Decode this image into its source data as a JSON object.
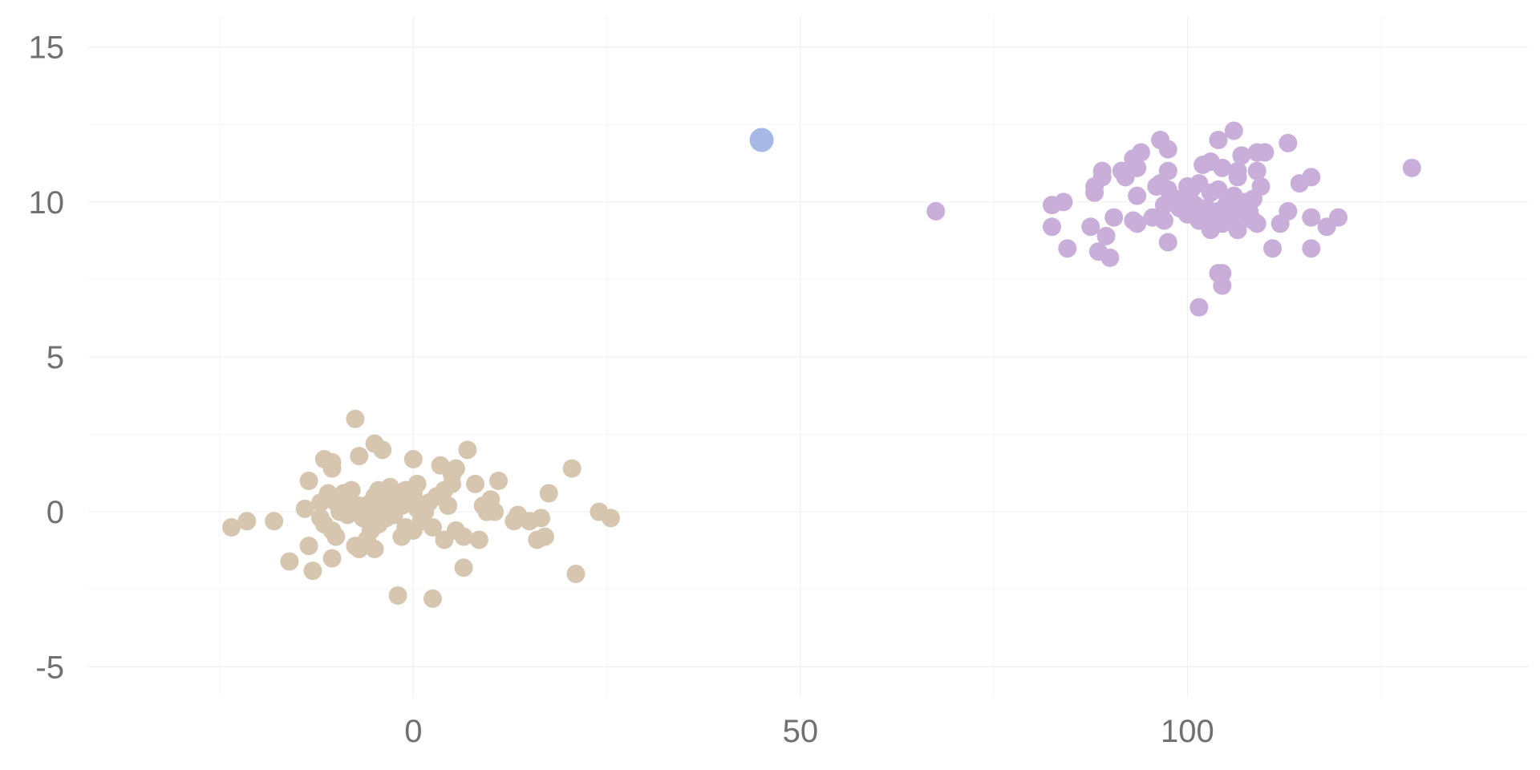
{
  "chart_data": {
    "type": "scatter",
    "title": "",
    "xlabel": "",
    "ylabel": "",
    "xlim": [
      -42,
      144
    ],
    "ylim": [
      -6,
      16
    ],
    "x_ticks": [
      0,
      50,
      100
    ],
    "x_tick_labels": [
      "0",
      "50",
      "100"
    ],
    "y_ticks": [
      -5,
      0,
      5,
      10,
      15
    ],
    "y_tick_labels": [
      "-5",
      "0",
      "5",
      "10",
      "15"
    ],
    "grid": true,
    "legend": "none",
    "series": [
      {
        "color": "#d6c6b0",
        "points": [
          [
            -23.5,
            -0.5
          ],
          [
            -21.5,
            -0.3
          ],
          [
            -18,
            -0.3
          ],
          [
            -16,
            -1.6
          ],
          [
            -14,
            0.1
          ],
          [
            -13.5,
            -1.1
          ],
          [
            -13.5,
            1
          ],
          [
            -13,
            -1.9
          ],
          [
            -12,
            0.3
          ],
          [
            -12,
            -0.2
          ],
          [
            -11.5,
            -0.4
          ],
          [
            -11.5,
            1.7
          ],
          [
            -11,
            0.6
          ],
          [
            -10.5,
            1.6
          ],
          [
            -10.5,
            1.4
          ],
          [
            -10.5,
            -0.6
          ],
          [
            -10.5,
            -1.5
          ],
          [
            -10,
            -0.8
          ],
          [
            -10,
            0.3
          ],
          [
            -9.5,
            0
          ],
          [
            -9,
            0.6
          ],
          [
            -8.5,
            0.2
          ],
          [
            -8.5,
            -0.1
          ],
          [
            -8,
            0.7
          ],
          [
            -7.5,
            -1.1
          ],
          [
            -7.5,
            3
          ],
          [
            -7,
            1.8
          ],
          [
            -7,
            -1.2
          ],
          [
            -7,
            0.2
          ],
          [
            -6.5,
            -0.2
          ],
          [
            -6,
            -0.9
          ],
          [
            -5.5,
            0.3
          ],
          [
            -5.5,
            -0.6
          ],
          [
            -5,
            0.5
          ],
          [
            -5,
            -1.2
          ],
          [
            -5,
            2.2
          ],
          [
            -5,
            0.1
          ],
          [
            -4.5,
            0.7
          ],
          [
            -4.5,
            -0.4
          ],
          [
            -4,
            2
          ],
          [
            -4,
            0.3
          ],
          [
            -3.5,
            -0.2
          ],
          [
            -3,
            0
          ],
          [
            -3,
            0.8
          ],
          [
            -2.5,
            0.5
          ],
          [
            -2.5,
            -0.1
          ],
          [
            -2,
            0.4
          ],
          [
            -2,
            -2.7
          ],
          [
            -1.5,
            -0.8
          ],
          [
            -1.5,
            0.2
          ],
          [
            -1,
            0.7
          ],
          [
            -1,
            -0.5
          ],
          [
            -0.5,
            0.3
          ],
          [
            0,
            -0.6
          ],
          [
            0,
            0.6
          ],
          [
            0,
            1.7
          ],
          [
            0.5,
            0.1
          ],
          [
            0.5,
            0.9
          ],
          [
            1,
            -0.3
          ],
          [
            1.5,
            0
          ],
          [
            2,
            0.3
          ],
          [
            2.5,
            -2.8
          ],
          [
            2.5,
            -0.5
          ],
          [
            3,
            0.5
          ],
          [
            3.5,
            1.5
          ],
          [
            4,
            0.7
          ],
          [
            4,
            -0.9
          ],
          [
            4.5,
            0.2
          ],
          [
            5,
            1.2
          ],
          [
            5,
            0.9
          ],
          [
            5.5,
            -0.6
          ],
          [
            5.5,
            1.4
          ],
          [
            6.5,
            -1.8
          ],
          [
            6.5,
            -0.8
          ],
          [
            7,
            2
          ],
          [
            8,
            0.9
          ],
          [
            8.5,
            -0.9
          ],
          [
            9,
            0.2
          ],
          [
            9.5,
            0
          ],
          [
            10,
            0.4
          ],
          [
            10.5,
            0
          ],
          [
            11,
            1
          ],
          [
            13,
            -0.3
          ],
          [
            13.5,
            -0.1
          ],
          [
            15,
            -0.3
          ],
          [
            16,
            -0.9
          ],
          [
            16.5,
            -0.2
          ],
          [
            17,
            -0.8
          ],
          [
            17.5,
            0.6
          ],
          [
            20.5,
            1.4
          ],
          [
            21,
            -2
          ],
          [
            24,
            0
          ],
          [
            25.5,
            -0.2
          ]
        ]
      },
      {
        "color": "#a8b8e6",
        "points": [
          [
            45,
            12
          ]
        ]
      },
      {
        "color": "#c8aed8",
        "points": [
          [
            67.5,
            9.7
          ],
          [
            82.5,
            9.2
          ],
          [
            82.5,
            9.9
          ],
          [
            84,
            10
          ],
          [
            84.5,
            8.5
          ],
          [
            87.5,
            9.2
          ],
          [
            88,
            10.3
          ],
          [
            88,
            10.5
          ],
          [
            88.5,
            8.4
          ],
          [
            89,
            11
          ],
          [
            89,
            10.8
          ],
          [
            89.5,
            8.9
          ],
          [
            90,
            8.2
          ],
          [
            90.5,
            9.5
          ],
          [
            91.5,
            11
          ],
          [
            92,
            10.8
          ],
          [
            93,
            11.4
          ],
          [
            93,
            9.4
          ],
          [
            93.5,
            11.1
          ],
          [
            93.5,
            9.3
          ],
          [
            93.5,
            10.2
          ],
          [
            94,
            11.6
          ],
          [
            95.5,
            9.5
          ],
          [
            96,
            10.5
          ],
          [
            96.5,
            12
          ],
          [
            96.5,
            10.6
          ],
          [
            97,
            9.9
          ],
          [
            97,
            9.4
          ],
          [
            97.5,
            11
          ],
          [
            97.5,
            10.4
          ],
          [
            97.5,
            11.7
          ],
          [
            97.5,
            8.7
          ],
          [
            98.5,
            10.1
          ],
          [
            99,
            9.8
          ],
          [
            99.5,
            10
          ],
          [
            100,
            10.5
          ],
          [
            100,
            9.6
          ],
          [
            100.5,
            10.4
          ],
          [
            101,
            9.9
          ],
          [
            101.5,
            10.6
          ],
          [
            101.5,
            9.4
          ],
          [
            101.5,
            6.6
          ],
          [
            102,
            11.2
          ],
          [
            102,
            9.7
          ],
          [
            102.5,
            9.8
          ],
          [
            103,
            9.1
          ],
          [
            103,
            10.3
          ],
          [
            103,
            11.3
          ],
          [
            103.5,
            9.5
          ],
          [
            104,
            12
          ],
          [
            104,
            7.7
          ],
          [
            104,
            10.4
          ],
          [
            104,
            9.7
          ],
          [
            104.5,
            11.1
          ],
          [
            104.5,
            9.3
          ],
          [
            104.5,
            7.7
          ],
          [
            104.5,
            7.3
          ],
          [
            105,
            9.9
          ],
          [
            105.5,
            9.5
          ],
          [
            106,
            9.4
          ],
          [
            106,
            9.8
          ],
          [
            106,
            10.2
          ],
          [
            106,
            12.3
          ],
          [
            106.5,
            11
          ],
          [
            106.5,
            9.1
          ],
          [
            106.5,
            10.8
          ],
          [
            107,
            11.5
          ],
          [
            107,
            9.6
          ],
          [
            107.5,
            10
          ],
          [
            108,
            9.7
          ],
          [
            108.5,
            9.4
          ],
          [
            108.5,
            10.1
          ],
          [
            109,
            11
          ],
          [
            109,
            11.6
          ],
          [
            109,
            9.3
          ],
          [
            109.5,
            10.5
          ],
          [
            110,
            11.6
          ],
          [
            111,
            8.5
          ],
          [
            112,
            9.3
          ],
          [
            113,
            9.7
          ],
          [
            113,
            11.9
          ],
          [
            114.5,
            10.6
          ],
          [
            116,
            8.5
          ],
          [
            116,
            9.5
          ],
          [
            116,
            10.8
          ],
          [
            118,
            9.2
          ],
          [
            119.5,
            9.5
          ],
          [
            129,
            11.1
          ]
        ]
      }
    ]
  }
}
